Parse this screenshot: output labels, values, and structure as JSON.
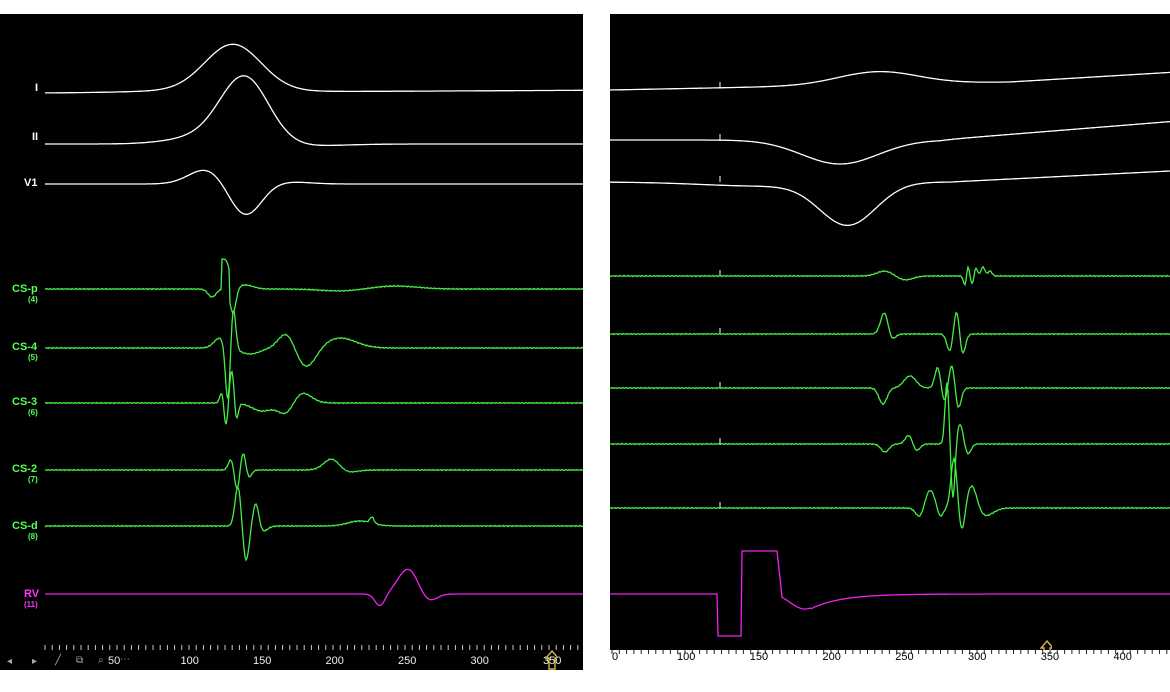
{
  "colors": {
    "background": "#000000",
    "surface_lead": "#ffffff",
    "cs_lead": "#44ee44",
    "rv_lead": "#ee22ee",
    "marker": "#d4b84a"
  },
  "left_panel": {
    "leads": [
      {
        "label": "I",
        "number": ""
      },
      {
        "label": "II",
        "number": ""
      },
      {
        "label": "V1",
        "number": ""
      },
      {
        "label": "CS-p",
        "number": "(4)"
      },
      {
        "label": "CS-4",
        "number": "(5)"
      },
      {
        "label": "CS-3",
        "number": "(6)"
      },
      {
        "label": "CS-2",
        "number": "(7)"
      },
      {
        "label": "CS-d",
        "number": "(8)"
      },
      {
        "label": "RV",
        "number": "(11)"
      }
    ],
    "time_axis": {
      "ticks": [
        "50",
        "100",
        "150",
        "200",
        "250",
        "300",
        "350"
      ],
      "tick_values": [
        50,
        100,
        150,
        200,
        250,
        300,
        350
      ]
    },
    "toolbar_icons": [
      "prev-icon",
      "next-icon",
      "pen-icon",
      "copy-icon",
      "zoom-icon",
      "more-icon"
    ],
    "marker_time": 350
  },
  "right_panel": {
    "time_axis": {
      "ticks": [
        "0",
        "100",
        "150",
        "200",
        "250",
        "300",
        "350",
        "400"
      ],
      "tick_values": [
        0,
        100,
        150,
        200,
        250,
        300,
        350,
        400
      ]
    },
    "marker_time": 350
  }
}
